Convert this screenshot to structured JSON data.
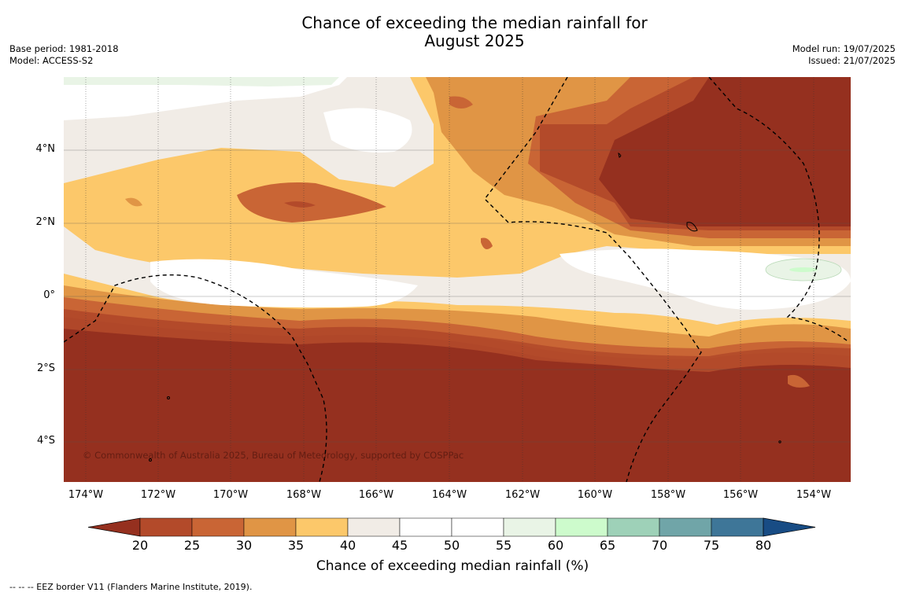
{
  "title_line1": "Chance of exceeding the median rainfall for",
  "title_line2": "August 2025",
  "meta_left": [
    "Base period: 1981-2018",
    "Model: ACCESS-S2"
  ],
  "meta_right": [
    "Model run: 19/07/2025",
    "Issued: 21/07/2025"
  ],
  "copyright": "© Commonwealth of Australia 2025, Bureau of Meteorology, supported by COSPPac",
  "lat_labels": [
    "4°N",
    "2°N",
    "0°",
    "2°S",
    "4°S"
  ],
  "lon_labels": [
    "174°W",
    "172°W",
    "170°W",
    "168°W",
    "166°W",
    "164°W",
    "162°W",
    "160°W",
    "158°W",
    "156°W",
    "154°W"
  ],
  "colorbar": {
    "label": "Chance of exceeding median rainfall (%)",
    "ticks": [
      "20",
      "25",
      "30",
      "35",
      "40",
      "45",
      "50",
      "55",
      "60",
      "65",
      "70",
      "75",
      "80"
    ],
    "colors": [
      "#95301f",
      "#b34a2a",
      "#c96535",
      "#e09545",
      "#fcc86a",
      "#f1ece6",
      "#ffffff",
      "#ffffff",
      "#e9f4e6",
      "#cdfbcc",
      "#9ed1b8",
      "#70a5a8",
      "#3e7698",
      "#184c84"
    ]
  },
  "footnote": "--  --  -- EEZ border V11 (Flanders Marine Institute, 2019)."
}
